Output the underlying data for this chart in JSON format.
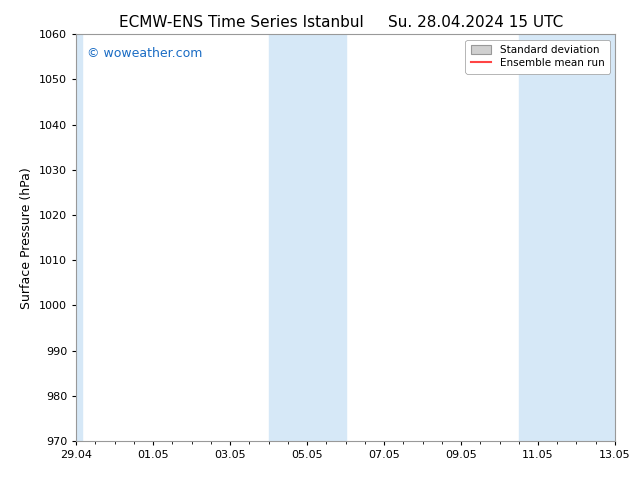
{
  "title_left": "ECMW-ENS Time Series Istanbul",
  "title_right": "Su. 28.04.2024 15 UTC",
  "ylabel": "Surface Pressure (hPa)",
  "ylim": [
    970,
    1060
  ],
  "yticks": [
    970,
    980,
    990,
    1000,
    1010,
    1020,
    1030,
    1040,
    1050,
    1060
  ],
  "xlim_start": "2024-04-29",
  "xlim_end": "2024-05-13",
  "xtick_labels": [
    "29.04",
    "01.05",
    "03.05",
    "05.05",
    "07.05",
    "09.05",
    "11.05",
    "13.05"
  ],
  "xtick_positions": [
    0,
    2,
    4,
    6,
    8,
    10,
    12,
    14
  ],
  "shaded_bands": [
    {
      "xmin": 0.0,
      "xmax": 0.15,
      "color": "#d6e8f7"
    },
    {
      "xmin": 5.0,
      "xmax": 7.0,
      "color": "#d6e8f7"
    },
    {
      "xmin": 11.5,
      "xmax": 14.5,
      "color": "#d6e8f7"
    }
  ],
  "watermark_text": "© woweather.com",
  "watermark_color": "#1a6cc4",
  "legend_std_color": "#d0d0d0",
  "legend_mean_color": "#ff4444",
  "background_color": "#ffffff",
  "plot_bg_color": "#ffffff",
  "grid_color": "#cccccc",
  "title_fontsize": 11,
  "axis_label_fontsize": 9,
  "tick_fontsize": 8
}
